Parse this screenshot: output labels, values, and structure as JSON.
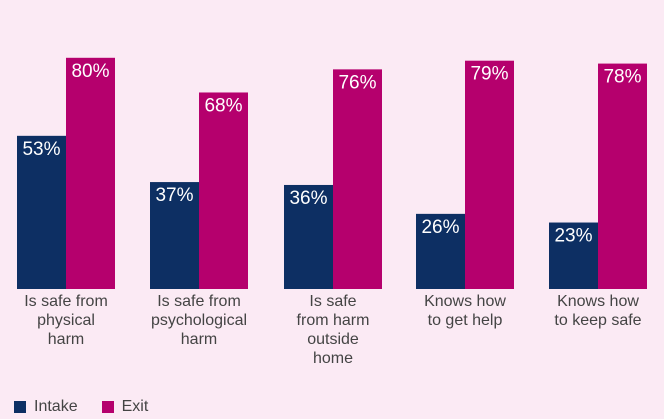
{
  "chart_data": {
    "type": "bar",
    "title": "",
    "xlabel": "",
    "ylabel": "",
    "ylim": [
      0,
      100
    ],
    "grid": false,
    "legend_position": "bottom-left",
    "categories": [
      "Is safe from physical harm",
      "Is safe from psychological harm",
      "Is safe from harm outside home",
      "Knows how to get help",
      "Knows how to keep safe"
    ],
    "category_label_lines": [
      [
        "Is safe from",
        "physical",
        "harm"
      ],
      [
        "Is safe from",
        "psychological",
        "harm"
      ],
      [
        "Is safe",
        "from harm",
        "outside",
        "home"
      ],
      [
        "Knows how",
        "to get help"
      ],
      [
        "Knows how",
        "to keep safe"
      ]
    ],
    "series": [
      {
        "name": "Intake",
        "color": "#0d2f63",
        "values": [
          53,
          37,
          36,
          26,
          23
        ],
        "labels": [
          "53%",
          "37%",
          "36%",
          "26%",
          "23%"
        ]
      },
      {
        "name": "Exit",
        "color": "#b5006d",
        "values": [
          80,
          68,
          76,
          79,
          78
        ],
        "labels": [
          "80%",
          "68%",
          "76%",
          "79%",
          "78%"
        ]
      }
    ]
  }
}
